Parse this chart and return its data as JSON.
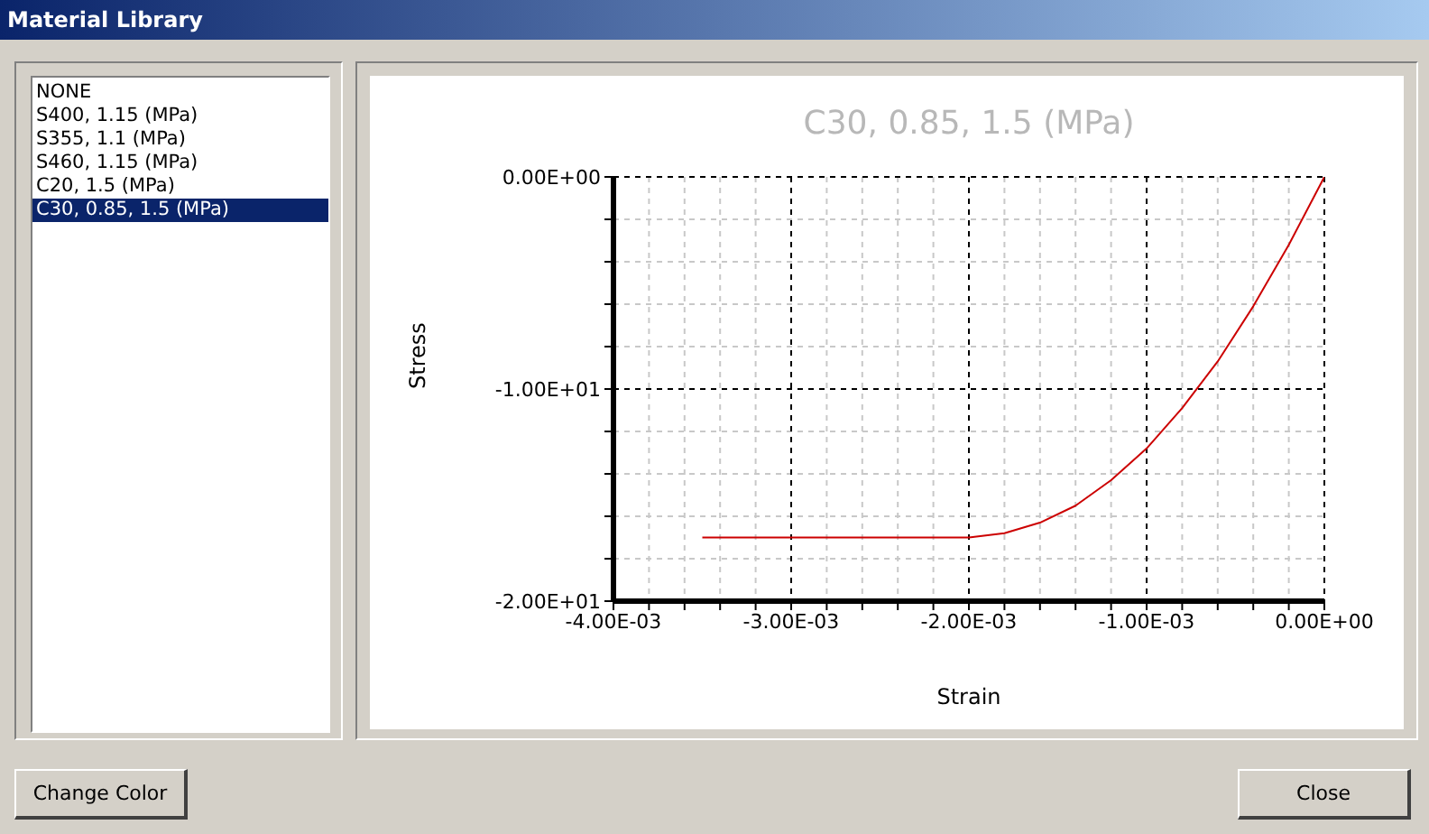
{
  "chart_data": {
    "type": "line",
    "title": "C30, 0.85, 1.5 (MPa)",
    "xlabel": "Strain",
    "ylabel": "Stress",
    "annotations": [
      "Material Library",
      "NONE",
      "S400, 1.15 (MPa)",
      "S355, 1.1 (MPa)",
      "S460, 1.15 (MPa)",
      "C20, 1.5 (MPa)",
      "C30, 0.85, 1.5 (MPa)",
      "Change Color",
      "Close"
    ],
    "x": [
      -0.0035,
      -0.003,
      -0.0025,
      -0.002,
      -0.0018,
      -0.0016,
      -0.0014,
      -0.0012,
      -0.001,
      -0.0008,
      -0.0006,
      -0.0004,
      -0.0002,
      0
    ],
    "series": [
      {
        "color": "#cc0000",
        "values": [
          -17,
          -17,
          -17,
          -17,
          -16.8,
          -16.3,
          -15.5,
          -14.3,
          -12.8,
          -10.9,
          -8.7,
          -6.1,
          -3.2,
          0
        ]
      }
    ],
    "xlim": [
      -0.004,
      0
    ],
    "xticks": [
      {
        "value": -0.004,
        "label": "-4.00E-03"
      },
      {
        "value": -0.0038,
        "label": null
      },
      {
        "value": -0.0036,
        "label": null
      },
      {
        "value": -0.0034,
        "label": null
      },
      {
        "value": -0.0032,
        "label": null
      },
      {
        "value": -0.003,
        "label": "-3.00E-03"
      },
      {
        "value": -0.0028,
        "label": null
      },
      {
        "value": -0.0026,
        "label": null
      },
      {
        "value": -0.0024,
        "label": null
      },
      {
        "value": -0.0022,
        "label": null
      },
      {
        "value": -0.002,
        "label": "-2.00E-03"
      },
      {
        "value": -0.0018,
        "label": null
      },
      {
        "value": -0.0016,
        "label": null
      },
      {
        "value": -0.0014,
        "label": null
      },
      {
        "value": -0.0012,
        "label": null
      },
      {
        "value": -0.001,
        "label": "-1.00E-03"
      },
      {
        "value": -0.0008,
        "label": null
      },
      {
        "value": -0.0006,
        "label": null
      },
      {
        "value": -0.0004,
        "label": null
      },
      {
        "value": -0.0002,
        "label": null
      },
      {
        "value": 0,
        "label": "0.00E+00"
      }
    ],
    "ylim": [
      -20,
      0
    ],
    "yticks": [
      {
        "value": -20,
        "label": "-2.00E+01"
      },
      {
        "value": -18,
        "label": null
      },
      {
        "value": -16,
        "label": null
      },
      {
        "value": -14,
        "label": null
      },
      {
        "value": -12,
        "label": null
      },
      {
        "value": -10,
        "label": "-1.00E+01"
      },
      {
        "value": -8,
        "label": null
      },
      {
        "value": -6,
        "label": null
      },
      {
        "value": -4,
        "label": null
      },
      {
        "value": -2,
        "label": null
      },
      {
        "value": 0,
        "label": "0.00E+00"
      }
    ],
    "grid": true,
    "marker": "none"
  }
}
